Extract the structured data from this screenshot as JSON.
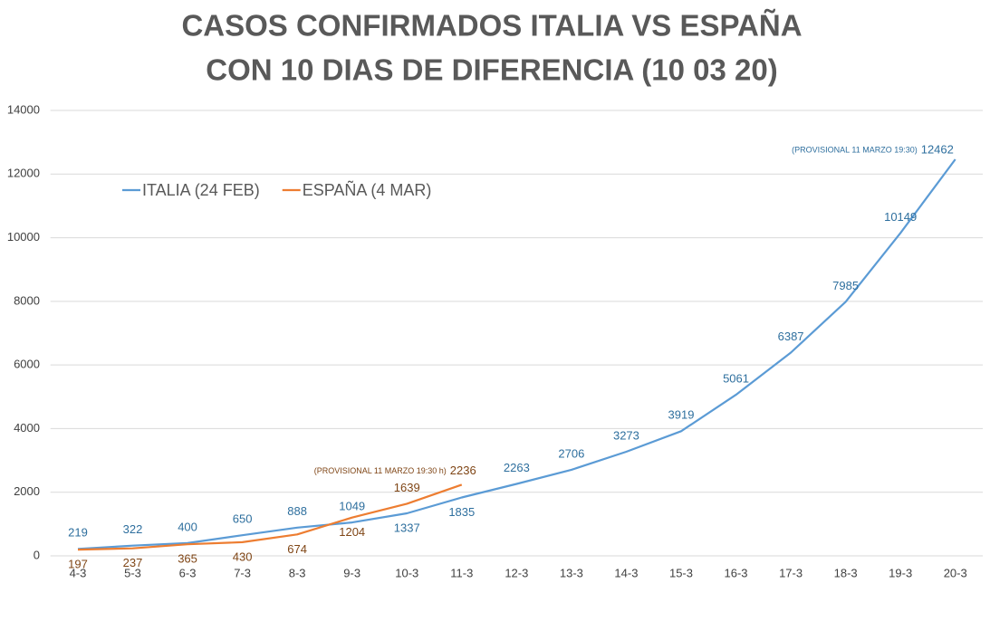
{
  "chart_data": {
    "type": "line",
    "title": [
      "CASOS CONFIRMADOS ITALIA VS ESPAÑA",
      "CON 10 DIAS DE DIFERENCIA (10 03 20)"
    ],
    "categories": [
      "4-3",
      "5-3",
      "6-3",
      "7-3",
      "8-3",
      "9-3",
      "10-3",
      "11-3",
      "12-3",
      "13-3",
      "14-3",
      "15-3",
      "16-3",
      "17-3",
      "18-3",
      "19-3",
      "20-3"
    ],
    "series": [
      {
        "name": "ITALIA (24 FEB)",
        "color": "#5b9bd5",
        "values": [
          219,
          322,
          400,
          650,
          888,
          1049,
          1337,
          1835,
          2263,
          2706,
          3273,
          3919,
          5061,
          6387,
          7985,
          10149,
          12462
        ]
      },
      {
        "name": "ESPAÑA (4 MAR)",
        "color": "#ed7d31",
        "values": [
          197,
          237,
          365,
          430,
          674,
          1204,
          1639,
          2236,
          null,
          null,
          null,
          null,
          null,
          null,
          null,
          null,
          null
        ]
      }
    ],
    "annotations": [
      "(PROVISIONAL 11 MARZO 19:30)",
      "(PROVISIONAL 11 MARZO 19:30 h)"
    ],
    "ylim": [
      0,
      14000
    ],
    "yticks": [
      0,
      2000,
      4000,
      6000,
      8000,
      10000,
      12000,
      14000
    ],
    "grid": true,
    "legend": "upper left"
  }
}
